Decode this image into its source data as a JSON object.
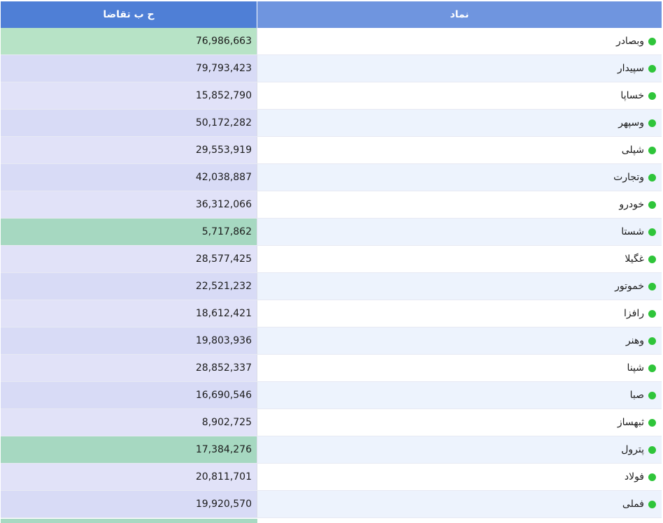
{
  "header": {
    "col_bid": "ح ب تقاضا",
    "col_symbol": "نماد"
  },
  "colors": {
    "row_green": "#b7e3c6",
    "row_green2": "#a6d8c1",
    "row_lavender": "#e1e2f8",
    "row_lavender2": "#d8dbf6",
    "sym_white": "#ffffff",
    "sym_blue": "#edf3fd",
    "dot": "#2fc53a"
  },
  "rows": [
    {
      "symbol": "وبصادر",
      "bid_volume": "76,986,663",
      "tone": "green"
    },
    {
      "symbol": "سپیدار",
      "bid_volume": "79,793,423",
      "tone": "lavender2"
    },
    {
      "symbol": "خساپا",
      "bid_volume": "15,852,790",
      "tone": "lavender"
    },
    {
      "symbol": "وسپهر",
      "bid_volume": "50,172,282",
      "tone": "lavender2"
    },
    {
      "symbol": "شپلی",
      "bid_volume": "29,553,919",
      "tone": "lavender"
    },
    {
      "symbol": "وتجارت",
      "bid_volume": "42,038,887",
      "tone": "lavender2"
    },
    {
      "symbol": "خودرو",
      "bid_volume": "36,312,066",
      "tone": "lavender"
    },
    {
      "symbol": "شستا",
      "bid_volume": "5,717,862",
      "tone": "green2"
    },
    {
      "symbol": "غگیلا",
      "bid_volume": "28,577,425",
      "tone": "lavender"
    },
    {
      "symbol": "خموتور",
      "bid_volume": "22,521,232",
      "tone": "lavender2"
    },
    {
      "symbol": "رافزا",
      "bid_volume": "18,612,421",
      "tone": "lavender"
    },
    {
      "symbol": "وهنر",
      "bid_volume": "19,803,936",
      "tone": "lavender2"
    },
    {
      "symbol": "شپنا",
      "bid_volume": "28,852,337",
      "tone": "lavender"
    },
    {
      "symbol": "صبا",
      "bid_volume": "16,690,546",
      "tone": "lavender2"
    },
    {
      "symbol": "ثبهساز",
      "bid_volume": "8,902,725",
      "tone": "lavender"
    },
    {
      "symbol": "پترول",
      "bid_volume": "17,384,276",
      "tone": "green2"
    },
    {
      "symbol": "فولاد",
      "bid_volume": "20,811,701",
      "tone": "lavender"
    },
    {
      "symbol": "فملی",
      "bid_volume": "19,920,570",
      "tone": "lavender2"
    }
  ]
}
